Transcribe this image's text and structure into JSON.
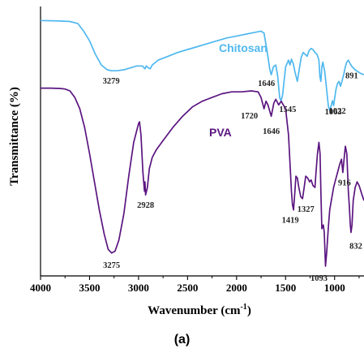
{
  "panel_label": "(a)",
  "chart_data": {
    "type": "line",
    "xlabel": "Wavenumber (cm⁻¹)",
    "ylabel": "Transmittance (%)",
    "xlim": [
      4000,
      700
    ],
    "x_reversed": true,
    "y_ticks_shown": false,
    "x_ticks": [
      4000,
      3500,
      3000,
      2500,
      2000,
      1500,
      1000
    ],
    "x_tick_labels": [
      "4000",
      "3500",
      "3000",
      "2500",
      "2000",
      "1500",
      "1000"
    ],
    "grid": false,
    "series": [
      {
        "name": "Chitosan",
        "color": "#4fb8ef",
        "points": [
          [
            4000,
            0.93
          ],
          [
            3800,
            0.925
          ],
          [
            3700,
            0.92
          ],
          [
            3620,
            0.9
          ],
          [
            3560,
            0.82
          ],
          [
            3500,
            0.72
          ],
          [
            3440,
            0.58
          ],
          [
            3380,
            0.47
          ],
          [
            3320,
            0.42
          ],
          [
            3279,
            0.41
          ],
          [
            3220,
            0.41
          ],
          [
            3150,
            0.42
          ],
          [
            3080,
            0.44
          ],
          [
            3020,
            0.46
          ],
          [
            2960,
            0.46
          ],
          [
            2935,
            0.43
          ],
          [
            2922,
            0.46
          ],
          [
            2900,
            0.44
          ],
          [
            2880,
            0.43
          ],
          [
            2860,
            0.47
          ],
          [
            2800,
            0.52
          ],
          [
            2700,
            0.56
          ],
          [
            2600,
            0.6
          ],
          [
            2500,
            0.63
          ],
          [
            2400,
            0.66
          ],
          [
            2300,
            0.69
          ],
          [
            2200,
            0.72
          ],
          [
            2100,
            0.75
          ],
          [
            2000,
            0.77
          ],
          [
            1900,
            0.79
          ],
          [
            1800,
            0.81
          ],
          [
            1750,
            0.82
          ],
          [
            1720,
            0.8
          ],
          [
            1690,
            0.62
          ],
          [
            1660,
            0.42
          ],
          [
            1646,
            0.37
          ],
          [
            1625,
            0.45
          ],
          [
            1600,
            0.47
          ],
          [
            1580,
            0.35
          ],
          [
            1560,
            0.13
          ],
          [
            1545,
            0.1
          ],
          [
            1530,
            0.16
          ],
          [
            1500,
            0.45
          ],
          [
            1470,
            0.52
          ],
          [
            1455,
            0.47
          ],
          [
            1440,
            0.53
          ],
          [
            1420,
            0.48
          ],
          [
            1405,
            0.4
          ],
          [
            1380,
            0.3
          ],
          [
            1360,
            0.43
          ],
          [
            1340,
            0.55
          ],
          [
            1320,
            0.6
          ],
          [
            1300,
            0.58
          ],
          [
            1280,
            0.56
          ],
          [
            1260,
            0.62
          ],
          [
            1240,
            0.64
          ],
          [
            1220,
            0.63
          ],
          [
            1200,
            0.6
          ],
          [
            1180,
            0.58
          ],
          [
            1160,
            0.52
          ],
          [
            1150,
            0.35
          ],
          [
            1140,
            0.3
          ],
          [
            1130,
            0.45
          ],
          [
            1120,
            0.5
          ],
          [
            1100,
            0.4
          ],
          [
            1080,
            0.2
          ],
          [
            1063,
            0.04
          ],
          [
            1050,
            0.0
          ],
          [
            1035,
            0.05
          ],
          [
            1022,
            0.1
          ],
          [
            1010,
            0.05
          ],
          [
            1000,
            0.12
          ],
          [
            985,
            0.22
          ],
          [
            970,
            0.28
          ],
          [
            955,
            0.3
          ],
          [
            940,
            0.25
          ],
          [
            925,
            0.3
          ],
          [
            905,
            0.38
          ],
          [
            891,
            0.45
          ],
          [
            875,
            0.5
          ],
          [
            860,
            0.52
          ],
          [
            840,
            0.48
          ],
          [
            820,
            0.45
          ],
          [
            790,
            0.42
          ],
          [
            760,
            0.4
          ],
          [
            730,
            0.38
          ],
          [
            700,
            0.37
          ]
        ],
        "peak_labels": [
          {
            "x": 3279,
            "text": "3279"
          },
          {
            "x": 1646,
            "text": "1646"
          },
          {
            "x": 1545,
            "text": "1545"
          },
          {
            "x": 1063,
            "text": "1063"
          },
          {
            "x": 1022,
            "text": "1022"
          },
          {
            "x": 891,
            "text": "891"
          }
        ]
      },
      {
        "name": "PVA",
        "color": "#5b1580",
        "points": [
          [
            4000,
            0.95
          ],
          [
            3900,
            0.95
          ],
          [
            3800,
            0.948
          ],
          [
            3750,
            0.945
          ],
          [
            3700,
            0.935
          ],
          [
            3650,
            0.9
          ],
          [
            3600,
            0.84
          ],
          [
            3550,
            0.74
          ],
          [
            3500,
            0.6
          ],
          [
            3450,
            0.45
          ],
          [
            3400,
            0.3
          ],
          [
            3350,
            0.17
          ],
          [
            3310,
            0.09
          ],
          [
            3275,
            0.07
          ],
          [
            3240,
            0.08
          ],
          [
            3200,
            0.14
          ],
          [
            3150,
            0.28
          ],
          [
            3100,
            0.48
          ],
          [
            3050,
            0.66
          ],
          [
            3000,
            0.76
          ],
          [
            2990,
            0.77
          ],
          [
            2975,
            0.7
          ],
          [
            2955,
            0.5
          ],
          [
            2940,
            0.4
          ],
          [
            2935,
            0.45
          ],
          [
            2928,
            0.38
          ],
          [
            2910,
            0.42
          ],
          [
            2890,
            0.52
          ],
          [
            2860,
            0.58
          ],
          [
            2820,
            0.62
          ],
          [
            2750,
            0.67
          ],
          [
            2650,
            0.74
          ],
          [
            2550,
            0.8
          ],
          [
            2450,
            0.85
          ],
          [
            2350,
            0.88
          ],
          [
            2250,
            0.9
          ],
          [
            2150,
            0.92
          ],
          [
            2050,
            0.93
          ],
          [
            1950,
            0.93
          ],
          [
            1850,
            0.935
          ],
          [
            1780,
            0.93
          ],
          [
            1750,
            0.9
          ],
          [
            1720,
            0.84
          ],
          [
            1700,
            0.88
          ],
          [
            1680,
            0.86
          ],
          [
            1646,
            0.8
          ],
          [
            1620,
            0.87
          ],
          [
            1600,
            0.89
          ],
          [
            1570,
            0.86
          ],
          [
            1545,
            0.88
          ],
          [
            1500,
            0.84
          ],
          [
            1470,
            0.7
          ],
          [
            1440,
            0.4
          ],
          [
            1430,
            0.33
          ],
          [
            1419,
            0.3
          ],
          [
            1405,
            0.4
          ],
          [
            1395,
            0.48
          ],
          [
            1380,
            0.47
          ],
          [
            1365,
            0.42
          ],
          [
            1345,
            0.37
          ],
          [
            1327,
            0.36
          ],
          [
            1310,
            0.42
          ],
          [
            1295,
            0.48
          ],
          [
            1275,
            0.47
          ],
          [
            1255,
            0.45
          ],
          [
            1240,
            0.46
          ],
          [
            1220,
            0.43
          ],
          [
            1200,
            0.42
          ],
          [
            1190,
            0.5
          ],
          [
            1175,
            0.6
          ],
          [
            1160,
            0.66
          ],
          [
            1148,
            0.6
          ],
          [
            1140,
            0.4
          ],
          [
            1130,
            0.2
          ],
          [
            1115,
            0.22
          ],
          [
            1105,
            0.18
          ],
          [
            1093,
            0.0
          ],
          [
            1080,
            0.08
          ],
          [
            1065,
            0.2
          ],
          [
            1050,
            0.3
          ],
          [
            1030,
            0.36
          ],
          [
            1010,
            0.42
          ],
          [
            990,
            0.46
          ],
          [
            970,
            0.5
          ],
          [
            950,
            0.54
          ],
          [
            930,
            0.57
          ],
          [
            916,
            0.5
          ],
          [
            905,
            0.56
          ],
          [
            890,
            0.64
          ],
          [
            875,
            0.6
          ],
          [
            860,
            0.4
          ],
          [
            850,
            0.32
          ],
          [
            840,
            0.22
          ],
          [
            832,
            0.18
          ],
          [
            822,
            0.22
          ],
          [
            810,
            0.35
          ],
          [
            790,
            0.42
          ],
          [
            770,
            0.45
          ],
          [
            750,
            0.43
          ],
          [
            720,
            0.38
          ],
          [
            700,
            0.35
          ]
        ],
        "peak_labels": [
          {
            "x": 3275,
            "text": "3275"
          },
          {
            "x": 2928,
            "text": "2928"
          },
          {
            "x": 1720,
            "text": "1720"
          },
          {
            "x": 1646,
            "text": "1646"
          },
          {
            "x": 1419,
            "text": "1419"
          },
          {
            "x": 1327,
            "text": "1327"
          },
          {
            "x": 1093,
            "text": "1093"
          },
          {
            "x": 916,
            "text": "916"
          },
          {
            "x": 832,
            "text": "832"
          }
        ]
      }
    ]
  }
}
